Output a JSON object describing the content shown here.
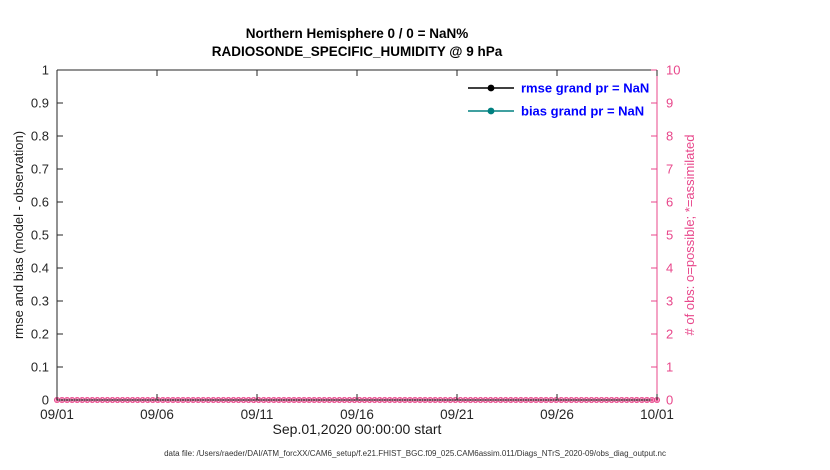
{
  "footer_caption": "data file: /Users/raeder/DAI/ATM_forcXX/CAM6_setup/f.e21.FHIST_BGC.f09_025.CAM6assim.011/Diags_NTrS_2020-09/obs_diag_output.nc",
  "chart_data": {
    "type": "line",
    "title": "Northern Hemisphere 0 / 0 = NaN%",
    "subtitle": "RADIOSONDE_SPECIFIC_HUMIDITY @ 9 hPa",
    "xlabel": "Sep.01,2020 00:00:00 start",
    "ylabel_left": "rmse and bias (model - observation)",
    "ylabel_right": "# of obs: o=possible; *=assimilated",
    "ylim_left": [
      0,
      1
    ],
    "ytick_values_left": [
      0,
      0.1,
      0.2,
      0.3,
      0.4,
      0.5,
      0.6,
      0.7,
      0.8,
      0.9,
      1
    ],
    "ytick_labels_left": [
      "0",
      "0.1",
      "0.2",
      "0.3",
      "0.4",
      "0.5",
      "0.6",
      "0.7",
      "0.8",
      "0.9",
      "1"
    ],
    "ylim_right": [
      0,
      10
    ],
    "ytick_values_right": [
      0,
      1,
      2,
      3,
      4,
      5,
      6,
      7,
      8,
      9,
      10
    ],
    "ytick_labels_right": [
      "0",
      "1",
      "2",
      "3",
      "4",
      "5",
      "6",
      "7",
      "8",
      "9",
      "10"
    ],
    "xlim_days": [
      0,
      30
    ],
    "xtick_days": [
      0,
      5,
      10,
      15,
      20,
      25,
      30
    ],
    "xtick_labels": [
      "09/01",
      "09/06",
      "09/11",
      "09/16",
      "09/21",
      "09/26",
      "10/01"
    ],
    "grid": false,
    "legend_position": "top-right",
    "legend_text_color": "#0000ff",
    "axis_color_left": "#262626",
    "axis_color_right": "#e8478b",
    "series": [
      {
        "name": "rmse grand pr = NaN",
        "color": "#000000",
        "values": []
      },
      {
        "name": "bias grand pr = NaN",
        "color": "#008080",
        "values": []
      }
    ],
    "obs_markers": {
      "description": "possible (o) and assimilated (*) observation counts, all zero",
      "color": "#e8478b",
      "value": 0,
      "count": 120,
      "symbols": [
        "o",
        "*"
      ]
    }
  }
}
